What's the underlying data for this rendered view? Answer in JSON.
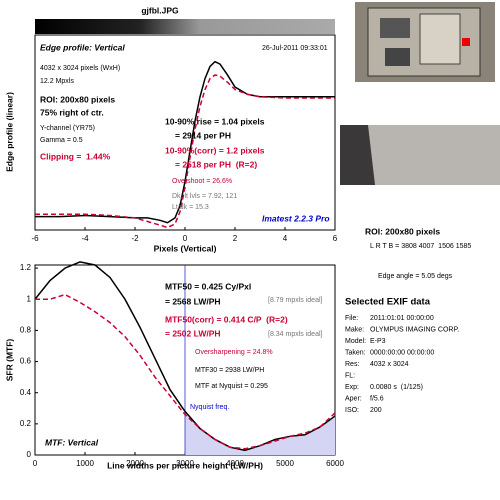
{
  "chart_data": [
    {
      "type": "line",
      "title": "gjfbl.JPG",
      "xlabel": "Pixels (Vertical)",
      "ylabel": "Edge profile (linear)",
      "x": [
        -6,
        -5,
        -4,
        -3,
        -2,
        -1.5,
        -1,
        -0.7,
        -0.4,
        -0.2,
        0,
        0.2,
        0.4,
        0.6,
        0.8,
        1,
        1.2,
        1.4,
        1.7,
        2,
        2.5,
        3,
        4,
        5,
        6
      ],
      "series": [
        {
          "color": "#000000",
          "dash": false,
          "values": [
            0.01,
            0.01,
            0.02,
            0.01,
            0.0,
            0.0,
            -0.02,
            -0.04,
            0,
            0.1,
            0.3,
            0.55,
            0.8,
            1.0,
            1.15,
            1.25,
            1.29,
            1.27,
            1.18,
            1.08,
            1.02,
            1.0,
            1.0,
            1.0,
            1.0
          ]
        },
        {
          "color": "#cc0033",
          "dash": true,
          "values": [
            0.03,
            0.03,
            0.03,
            0.02,
            0.0,
            -0.03,
            -0.06,
            -0.08,
            -0.05,
            0.05,
            0.25,
            0.5,
            0.73,
            0.92,
            1.06,
            1.15,
            1.18,
            1.17,
            1.12,
            1.06,
            1.02,
            1.0,
            0.99,
            0.99,
            0.99
          ]
        }
      ],
      "xlim": [
        -6,
        6
      ],
      "xticks": [
        -6,
        -4,
        -2,
        0,
        2,
        4,
        6
      ],
      "ylim": [
        -0.1,
        1.51
      ],
      "annotations": [
        "Edge profile: Vertical",
        "26-Jul-2011 09:33:01",
        "4032 x 3024 pixels (WxH)",
        "12.2 Mpxls",
        "ROI: 200x80 pixels",
        "75% right of ctr.",
        "Y-channel (YR75)",
        "Gamma = 0.5",
        "Clipping =  1.44%",
        "10-90% rise = 1.04 pixels",
        "= 2914 per PH",
        "10-90%(corr) = 1.2 pixels",
        "= 2518 per PH  (R=2)",
        "Overshoot = 26.6%",
        "Dk, lt lvls = 7.92, 121",
        "Lt/dk = 15.3",
        "Imatest 2.2.3 Pro"
      ]
    },
    {
      "type": "line",
      "xlabel": "Line widths per picture height (LW/PH)",
      "ylabel": "SFR (MTF)",
      "x": [
        0,
        300,
        600,
        900,
        1200,
        1500,
        1800,
        2100,
        2400,
        2700,
        3000,
        3300,
        3600,
        3900,
        4200,
        4500,
        4800,
        5100,
        5400,
        5700,
        6000
      ],
      "series": [
        {
          "color": "#000000",
          "dash": false,
          "values": [
            1.0,
            1.12,
            1.2,
            1.24,
            1.22,
            1.14,
            1.0,
            0.82,
            0.62,
            0.42,
            0.28,
            0.17,
            0.1,
            0.05,
            0.03,
            0.06,
            0.1,
            0.12,
            0.13,
            0.18,
            0.25
          ]
        },
        {
          "color": "#cc0033",
          "dash": true,
          "values": [
            1.0,
            1.0,
            1.03,
            0.98,
            0.92,
            0.85,
            0.76,
            0.64,
            0.5,
            0.38,
            0.26,
            0.17,
            0.1,
            0.05,
            0.04,
            0.06,
            0.09,
            0.12,
            0.14,
            0.18,
            0.27
          ]
        }
      ],
      "nyquist": 3000,
      "xlim": [
        0,
        6000
      ],
      "xticks": [
        0,
        1000,
        2000,
        3000,
        4000,
        5000,
        6000
      ],
      "ylim": [
        0,
        1.22
      ],
      "yticks": [
        0,
        0.2,
        0.4,
        0.6,
        0.8,
        1,
        1.2
      ],
      "annotations": [
        "MTF50 = 0.425 Cy/Pxl",
        "= 2568 LW/PH",
        "[8.79 mpxls ideal]",
        "MTF50(corr) = 0.414 C/P  (R=2)",
        "= 2502 LW/PH",
        "[8.34 mpxls ideal]",
        "Oversharpening = 24.8%",
        "MTF30 = 2938 LW/PH",
        "MTF at Nyquist = 0.295",
        "Nyquist freq.",
        "MTF: Vertical"
      ]
    }
  ],
  "side_panel": {
    "roi": "ROI: 200x80 pixels",
    "lrtb": "L R T B = 3808 4007  1506 1585",
    "edge_angle": "Edge angle = 5.05 degs",
    "exif_title": "Selected EXIF data",
    "exif": [
      {
        "label": "File:",
        "value": "2011:01:01 00:00:00"
      },
      {
        "label": "Make:",
        "value": "OLYMPUS IMAGING CORP."
      },
      {
        "label": "Model:",
        "value": "E-P3"
      },
      {
        "label": "Taken:",
        "value": "0000:00:00 00:00:00"
      },
      {
        "label": "Res:",
        "value": "4032 x 3024"
      },
      {
        "label": "FL:"
      },
      {
        "label": "Exp:",
        "value": "0.0080 s  (1/125)"
      },
      {
        "label": "Aper:",
        "value": "f/5.6"
      },
      {
        "label": "ISO:",
        "value": "200"
      }
    ]
  }
}
